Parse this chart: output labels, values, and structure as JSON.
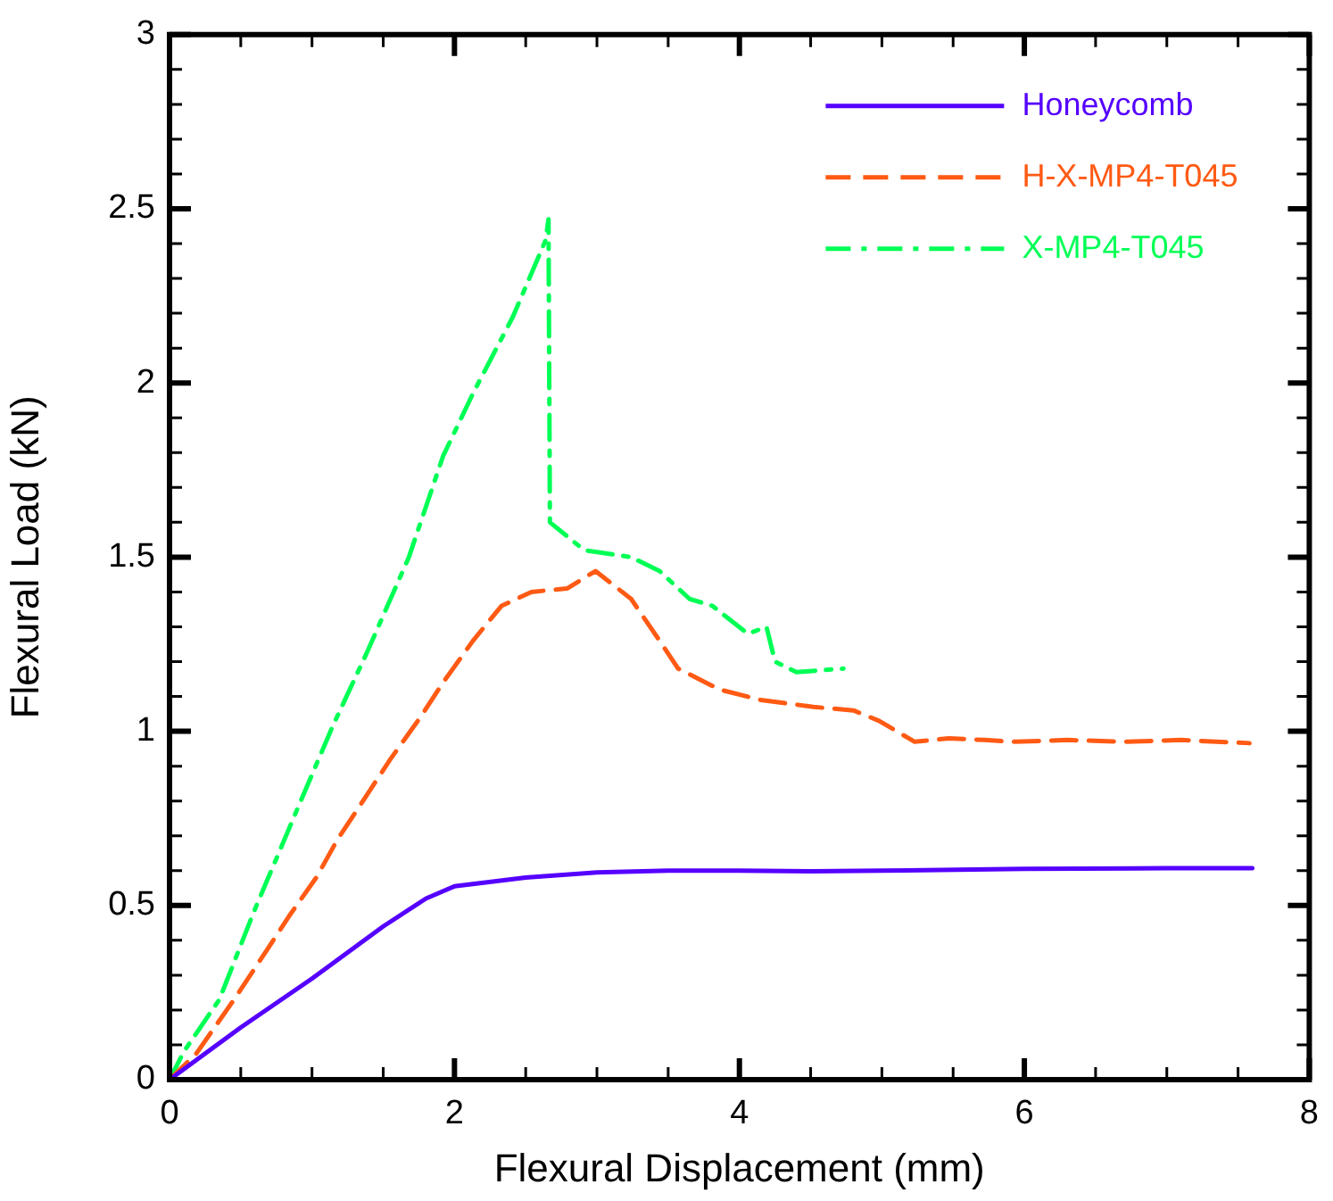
{
  "chart_data": {
    "type": "line",
    "xlabel": "Flexural Displacement (mm)",
    "ylabel": "Flexural Load (kN)",
    "xlim": [
      0,
      8
    ],
    "ylim": [
      0,
      3
    ],
    "xticks": [
      0,
      {
        "value": 0.5,
        "label": null
      },
      {
        "value": 1,
        "label": null
      },
      {
        "value": 1.5,
        "label": null
      },
      2,
      {
        "value": 2.5,
        "label": null
      },
      {
        "value": 3,
        "label": null
      },
      {
        "value": 3.5,
        "label": null
      },
      4,
      {
        "value": 4.5,
        "label": null
      },
      {
        "value": 5,
        "label": null
      },
      {
        "value": 5.5,
        "label": null
      },
      6,
      {
        "value": 6.5,
        "label": null
      },
      {
        "value": 7,
        "label": null
      },
      {
        "value": 7.5,
        "label": null
      },
      8
    ],
    "yticks": [
      0,
      {
        "value": 0.1,
        "label": null
      },
      {
        "value": 0.2,
        "label": null
      },
      {
        "value": 0.3,
        "label": null
      },
      {
        "value": 0.4,
        "label": null
      },
      0.5,
      {
        "value": 0.6,
        "label": null
      },
      {
        "value": 0.7,
        "label": null
      },
      {
        "value": 0.8,
        "label": null
      },
      {
        "value": 0.9,
        "label": null
      },
      1,
      {
        "value": 1.1,
        "label": null
      },
      {
        "value": 1.2,
        "label": null
      },
      {
        "value": 1.3,
        "label": null
      },
      {
        "value": 1.4,
        "label": null
      },
      1.5,
      {
        "value": 1.6,
        "label": null
      },
      {
        "value": 1.7,
        "label": null
      },
      {
        "value": 1.8,
        "label": null
      },
      {
        "value": 1.9,
        "label": null
      },
      2,
      {
        "value": 2.1,
        "label": null
      },
      {
        "value": 2.2,
        "label": null
      },
      {
        "value": 2.3,
        "label": null
      },
      {
        "value": 2.4,
        "label": null
      },
      2.5,
      {
        "value": 2.6,
        "label": null
      },
      {
        "value": 2.7,
        "label": null
      },
      {
        "value": 2.8,
        "label": null
      },
      {
        "value": 2.9,
        "label": null
      },
      3
    ],
    "grid": false,
    "legend": "top right",
    "marker": "none",
    "series": [
      {
        "name": "Honeycomb",
        "color": "#5500ff",
        "line_style": "solid",
        "x": [
          0,
          0.5,
          1,
          1.5,
          1.8,
          2,
          2.5,
          3,
          3.5,
          4,
          4.5,
          5,
          6,
          7,
          7.6
        ],
        "values": [
          0,
          0.15,
          0.29,
          0.44,
          0.52,
          0.555,
          0.58,
          0.595,
          0.6,
          0.6,
          0.598,
          0.6,
          0.605,
          0.607,
          0.607
        ]
      },
      {
        "name": "H-X-MP4-T045",
        "color": "#ff5a14",
        "line_style": "dashed",
        "x": [
          0,
          0.19,
          0.47,
          0.68,
          0.84,
          1.03,
          1.18,
          1.39,
          1.55,
          1.76,
          1.92,
          2.13,
          2.33,
          2.54,
          2.79,
          2.99,
          3.24,
          3.44,
          3.57,
          3.86,
          4.15,
          4.52,
          4.8,
          4.98,
          5.23,
          5.47,
          5.72,
          5.92,
          6.3,
          6.7,
          7.1,
          7.58
        ],
        "values": [
          0,
          0.076,
          0.24,
          0.37,
          0.47,
          0.58,
          0.69,
          0.82,
          0.92,
          1.04,
          1.14,
          1.26,
          1.36,
          1.4,
          1.41,
          1.46,
          1.38,
          1.26,
          1.18,
          1.12,
          1.09,
          1.07,
          1.06,
          1.03,
          0.97,
          0.98,
          0.975,
          0.97,
          0.975,
          0.97,
          0.975,
          0.966
        ]
      },
      {
        "name": "X-MP4-T045",
        "color": "#00ff55",
        "line_style": "dashdot",
        "x": [
          0,
          0.1,
          0.35,
          0.59,
          0.89,
          1.14,
          1.39,
          1.68,
          1.92,
          2.13,
          2.41,
          2.64,
          2.66,
          2.67,
          2.91,
          3.24,
          3.44,
          3.65,
          3.81,
          4.06,
          4.19,
          4.25,
          4.4,
          4.73
        ],
        "values": [
          0,
          0.08,
          0.23,
          0.48,
          0.77,
          1.01,
          1.23,
          1.5,
          1.79,
          1.97,
          2.19,
          2.41,
          2.47,
          1.6,
          1.52,
          1.5,
          1.46,
          1.38,
          1.36,
          1.28,
          1.3,
          1.2,
          1.17,
          1.18
        ]
      }
    ]
  }
}
